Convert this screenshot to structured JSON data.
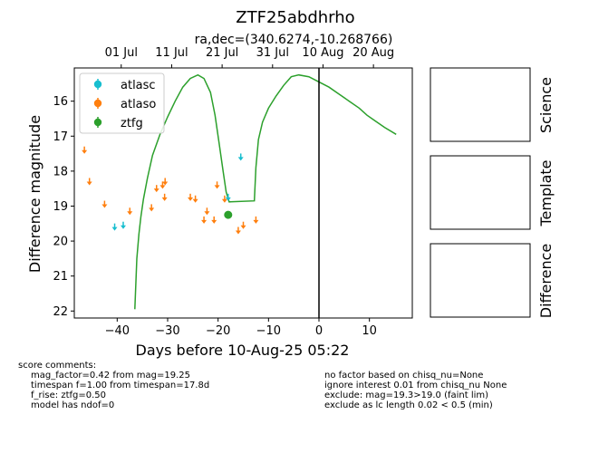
{
  "chart_data": {
    "type": "scatter",
    "title": "ZTF25abdhrho",
    "subtitle": "ra,dec=(340.6274,-10.268766)",
    "xlabel": "Days before 10-Aug-25 05:22",
    "ylabel": "Difference magnitude",
    "xlim": [
      -48.5,
      18.5
    ],
    "ylim": [
      22.2,
      15.05
    ],
    "x_ticks": [
      -40,
      -30,
      -20,
      -10,
      0,
      10
    ],
    "y_ticks": [
      16,
      17,
      18,
      19,
      20,
      21,
      22
    ],
    "top_axis_ticks": [
      {
        "x": -39.2,
        "label": "01 Jul"
      },
      {
        "x": -29.2,
        "label": "11 Jul"
      },
      {
        "x": -19.2,
        "label": "21 Jul"
      },
      {
        "x": -9.2,
        "label": "31 Jul"
      },
      {
        "x": 0.8,
        "label": "10 Aug"
      },
      {
        "x": 10.8,
        "label": "20 Aug"
      }
    ],
    "legend_position": "top-left",
    "now_line_x": 0,
    "series": [
      {
        "name": "atlasc",
        "color": "#17becf",
        "kind": "upper_limits",
        "points": [
          [
            -40.5,
            19.6
          ],
          [
            -38.8,
            19.55
          ],
          [
            -15.5,
            17.6
          ],
          [
            -18,
            18.75
          ]
        ]
      },
      {
        "name": "atlaso",
        "color": "#ff7f0e",
        "kind": "upper_limits",
        "points": [
          [
            -46.5,
            17.4
          ],
          [
            -45.5,
            18.3
          ],
          [
            -42.5,
            18.95
          ],
          [
            -37.5,
            19.15
          ],
          [
            -33.2,
            19.05
          ],
          [
            -32.2,
            18.5
          ],
          [
            -31,
            18.4
          ],
          [
            -30.5,
            18.3
          ],
          [
            -30.6,
            18.75
          ],
          [
            -25.5,
            18.75
          ],
          [
            -24.5,
            18.8
          ],
          [
            -22.8,
            19.4
          ],
          [
            -22.2,
            19.15
          ],
          [
            -20.8,
            19.4
          ],
          [
            -20.2,
            18.4
          ],
          [
            -18.7,
            18.8
          ],
          [
            -16,
            19.7
          ],
          [
            -15,
            19.55
          ],
          [
            -12.5,
            19.4
          ]
        ]
      },
      {
        "name": "ztfg",
        "color": "#2ca02c",
        "kind": "detection",
        "points": [
          [
            -18,
            19.25,
            0.1
          ]
        ]
      }
    ],
    "model_curve": {
      "color": "#2ca02c",
      "points": [
        [
          -36.5,
          21.95
        ],
        [
          -36.1,
          20.5
        ],
        [
          -35.7,
          19.8
        ],
        [
          -35.3,
          19.3
        ],
        [
          -34.8,
          18.8
        ],
        [
          -34,
          18.2
        ],
        [
          -33,
          17.55
        ],
        [
          -31.5,
          16.95
        ],
        [
          -30,
          16.45
        ],
        [
          -28.5,
          16
        ],
        [
          -27,
          15.6
        ],
        [
          -25.5,
          15.35
        ],
        [
          -24,
          15.25
        ],
        [
          -22.8,
          15.35
        ],
        [
          -21.5,
          15.75
        ],
        [
          -20.6,
          16.4
        ],
        [
          -19.8,
          17.2
        ],
        [
          -19,
          18
        ],
        [
          -18.4,
          18.6
        ],
        [
          -17.8,
          18.88
        ],
        [
          -12.8,
          18.85
        ],
        [
          -12.5,
          17.9
        ],
        [
          -12,
          17.1
        ],
        [
          -11.2,
          16.6
        ],
        [
          -10,
          16.2
        ],
        [
          -8.5,
          15.85
        ],
        [
          -7,
          15.55
        ],
        [
          -5.5,
          15.3
        ],
        [
          -4,
          15.25
        ],
        [
          -2,
          15.3
        ],
        [
          0,
          15.45
        ],
        [
          2,
          15.6
        ],
        [
          4,
          15.8
        ],
        [
          6,
          16.0
        ],
        [
          8,
          16.2
        ],
        [
          9.5,
          16.4
        ],
        [
          11,
          16.55
        ],
        [
          13,
          16.75
        ],
        [
          15.3,
          16.95
        ]
      ]
    }
  },
  "panels": [
    "Science",
    "Template",
    "Difference"
  ],
  "comments": {
    "header": "score comments:",
    "left": [
      "mag_factor=0.42 from mag=19.25",
      "timespan f=1.00 from timespan=17.8d",
      "f_rise: ztfg=0.50",
      "model has ndof=0"
    ],
    "right": [
      "no factor based on chisq_nu=None",
      "ignore interest 0.01 from chisq_nu None",
      "exclude: mag=19.3>19.0 (faint lim)",
      "exclude as lc length 0.02 < 0.5 (min)"
    ]
  }
}
